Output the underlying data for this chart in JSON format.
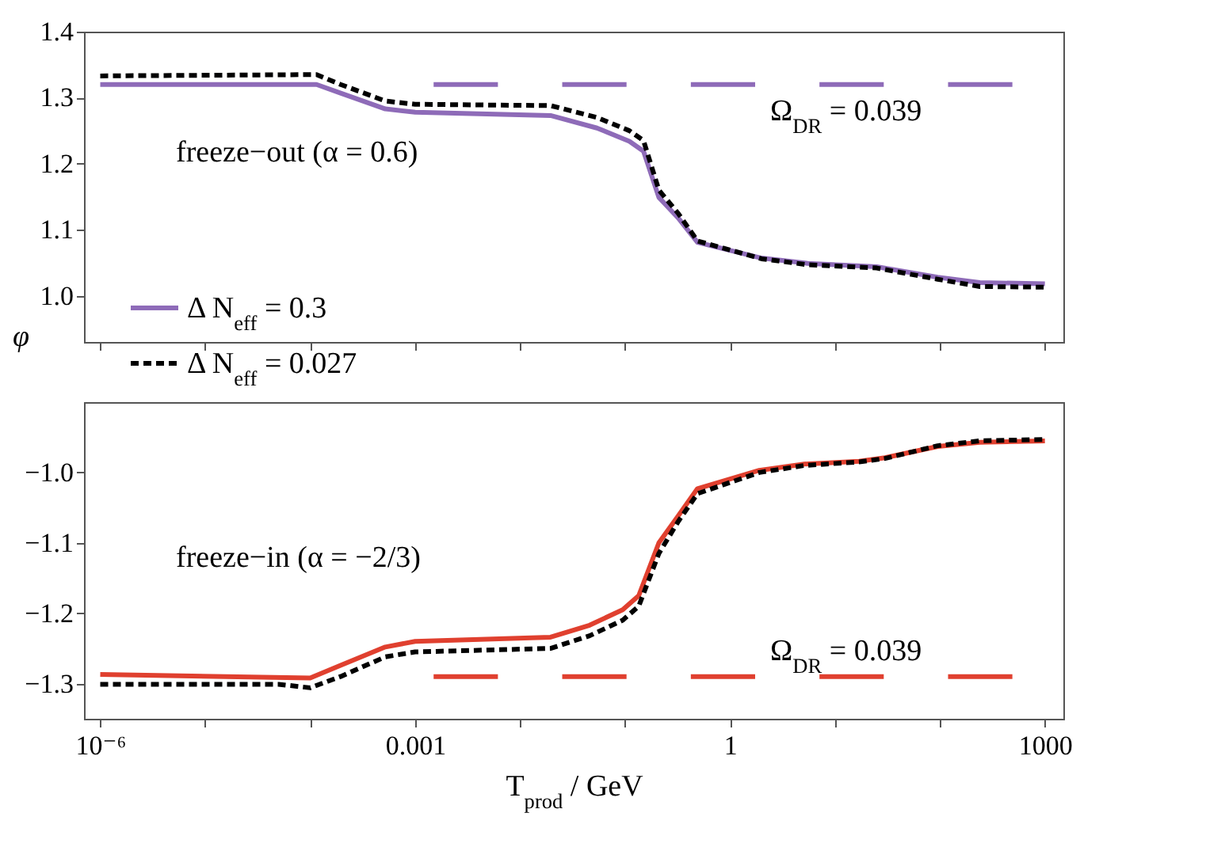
{
  "chart_data": [
    {
      "type": "line",
      "ylabel": "φ",
      "xlim": [
        7e-07,
        1500
      ],
      "xticks": [
        {
          "value": 1e-06,
          "label": null
        },
        {
          "value": 1e-05,
          "label": null
        },
        {
          "value": 0.0001,
          "label": null
        },
        {
          "value": 0.001,
          "label": null
        },
        {
          "value": 0.01,
          "label": null
        },
        {
          "value": 0.1,
          "label": null
        },
        {
          "value": 1,
          "label": null
        },
        {
          "value": 10,
          "label": null
        },
        {
          "value": 100,
          "label": null
        },
        {
          "value": 1000,
          "label": null
        }
      ],
      "ylim": [
        0.93,
        1.4
      ],
      "yticks": [
        {
          "value": 1,
          "label": "1.0"
        },
        1.1,
        1.2,
        1.3,
        1.4
      ],
      "log": "x",
      "tick_labels": "y",
      "legend": "bottom left",
      "grid": false,
      "annotations": [
        "freeze−out (α = 0.6)",
        "Ω$_{DR}$ = 0.039"
      ],
      "series": [
        {
          "name": "Δ N$_{eff}$ = 0.3",
          "color": "#8e6bb8",
          "line_style": "solid",
          "x": [
            1e-06,
            0.000115,
            0.000195,
            0.00052,
            0.001,
            0.0195,
            0.054,
            0.11,
            0.15,
            0.21,
            0.32,
            0.49,
            2.0,
            5.5,
            25,
            95,
            240,
            1000
          ],
          "values": [
            1.32,
            1.32,
            1.307,
            1.283,
            1.278,
            1.273,
            1.254,
            1.234,
            1.219,
            1.149,
            1.118,
            1.081,
            1.057,
            1.049,
            1.044,
            1.028,
            1.02,
            1.018
          ]
        },
        {
          "name": "Δ N$_{eff}$ = 0.027",
          "color": "#000000",
          "line_style": "dashed",
          "x": [
            1e-06,
            0.000115,
            0.000195,
            0.00052,
            0.001,
            0.0195,
            0.054,
            0.11,
            0.15,
            0.21,
            0.32,
            0.49,
            2.0,
            5.5,
            25,
            95,
            240,
            1000
          ],
          "values": [
            1.333,
            1.335,
            1.32,
            1.295,
            1.29,
            1.288,
            1.27,
            1.25,
            1.235,
            1.16,
            1.125,
            1.083,
            1.056,
            1.047,
            1.042,
            1.025,
            1.014,
            1.013
          ]
        },
        {
          "color": "#8e6bb8",
          "line_style": "dashed",
          "x": [
            0.0015,
            490
          ],
          "values": [
            1.32,
            1.32
          ]
        }
      ]
    },
    {
      "type": "line",
      "xlabel": "T$_{prod}$ / GeV",
      "xlim": [
        7e-07,
        1500
      ],
      "xticks": [
        {
          "value": 1e-06,
          "label": "10⁻⁶"
        },
        {
          "value": 1e-05,
          "label": null
        },
        {
          "value": 0.0001,
          "label": null
        },
        0.001,
        {
          "value": 0.01,
          "label": null
        },
        {
          "value": 0.1,
          "label": null
        },
        1,
        {
          "value": 10,
          "label": null
        },
        {
          "value": 100,
          "label": null
        },
        1000
      ],
      "ylim": [
        -1.35,
        -0.9
      ],
      "yticks": [
        {
          "value": -1.3,
          "label": "−1.3"
        },
        {
          "value": -1.2,
          "label": "−1.2"
        },
        {
          "value": -1.1,
          "label": "−1.1"
        },
        {
          "value": -1,
          "label": "−1.0"
        }
      ],
      "log": "x",
      "grid": false,
      "annotations": [
        "freeze−in (α = −2/3)",
        "Ω$_{DR}$ = 0.039"
      ],
      "series": [
        {
          "color": "#e0402f",
          "line_style": "solid",
          "x": [
            1e-06,
            0.0001,
            0.000195,
            0.00052,
            0.001,
            0.0195,
            0.046,
            0.095,
            0.135,
            0.21,
            0.32,
            0.49,
            1.9,
            5.1,
            17,
            30,
            95,
            240,
            1000
          ],
          "values": [
            -1.287,
            -1.292,
            -1.274,
            -1.248,
            -1.24,
            -1.234,
            -1.217,
            -1.195,
            -1.175,
            -1.1,
            -1.062,
            -1.023,
            -0.997,
            -0.988,
            -0.984,
            -0.979,
            -0.963,
            -0.957,
            -0.955
          ]
        },
        {
          "color": "#000000",
          "line_style": "dashed",
          "x": [
            1e-06,
            5e-05,
            0.0001,
            0.000195,
            0.00052,
            0.001,
            0.0195,
            0.046,
            0.095,
            0.135,
            0.21,
            0.32,
            0.49,
            1.9,
            5.1,
            17,
            30,
            95,
            240,
            1000
          ],
          "values": [
            -1.301,
            -1.301,
            -1.306,
            -1.29,
            -1.262,
            -1.255,
            -1.25,
            -1.232,
            -1.21,
            -1.19,
            -1.115,
            -1.07,
            -1.03,
            -1.0,
            -0.99,
            -0.985,
            -0.98,
            -0.962,
            -0.955,
            -0.953
          ]
        },
        {
          "color": "#e0402f",
          "line_style": "dashed",
          "x": [
            0.0015,
            490
          ],
          "values": [
            -1.29,
            -1.29
          ]
        }
      ]
    }
  ]
}
